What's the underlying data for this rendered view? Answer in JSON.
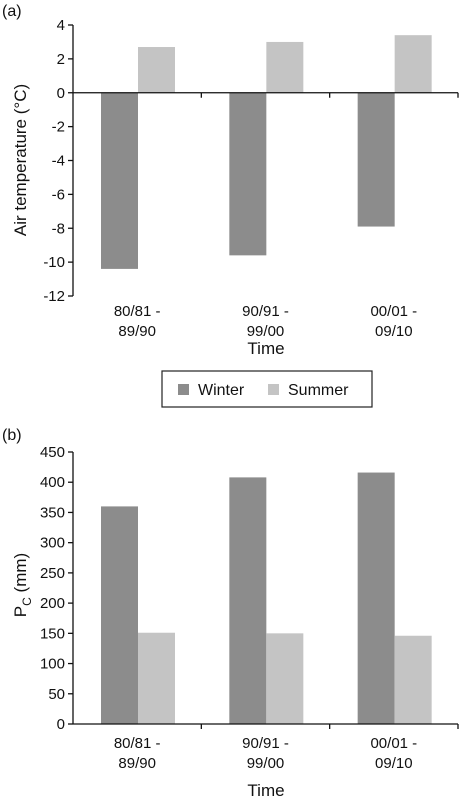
{
  "panels": [
    {
      "label": "(a)"
    },
    {
      "label": "(b)"
    }
  ],
  "legend": {
    "items": [
      {
        "name": "Winter",
        "color": "#8c8c8c"
      },
      {
        "name": "Summer",
        "color": "#c4c4c4"
      }
    ]
  },
  "chart_data": [
    {
      "type": "bar",
      "categories": [
        [
          "80/81 -",
          "89/90"
        ],
        [
          "90/91 -",
          "99/00"
        ],
        [
          "00/01 -",
          "09/10"
        ]
      ],
      "series": [
        {
          "name": "Winter",
          "values": [
            -10.4,
            -9.6,
            -7.9
          ],
          "color": "#8c8c8c"
        },
        {
          "name": "Summer",
          "values": [
            2.7,
            3.0,
            3.4
          ],
          "color": "#c4c4c4"
        }
      ],
      "xlabel": "Time",
      "ylabel": "Air temperature (°C)",
      "ylim": [
        -12,
        4
      ],
      "yticks": [
        4,
        2,
        0,
        -2,
        -4,
        -6,
        -8,
        -10,
        -12
      ],
      "grid": false,
      "legend": "below"
    },
    {
      "type": "bar",
      "categories": [
        [
          "80/81 -",
          "89/90"
        ],
        [
          "90/91 -",
          "99/00"
        ],
        [
          "00/01 -",
          "09/10"
        ]
      ],
      "series": [
        {
          "name": "Winter",
          "values": [
            360,
            408,
            416
          ],
          "color": "#8c8c8c"
        },
        {
          "name": "Summer",
          "values": [
            151,
            150,
            146
          ],
          "color": "#c4c4c4"
        }
      ],
      "xlabel": "Time",
      "ylabel": "P",
      "ylabel_sub": "C",
      "ylabel_unit": " (mm)",
      "ylim": [
        0,
        450
      ],
      "yticks": [
        450,
        400,
        350,
        300,
        250,
        200,
        150,
        100,
        50,
        0
      ],
      "grid": false,
      "legend": "none"
    }
  ]
}
